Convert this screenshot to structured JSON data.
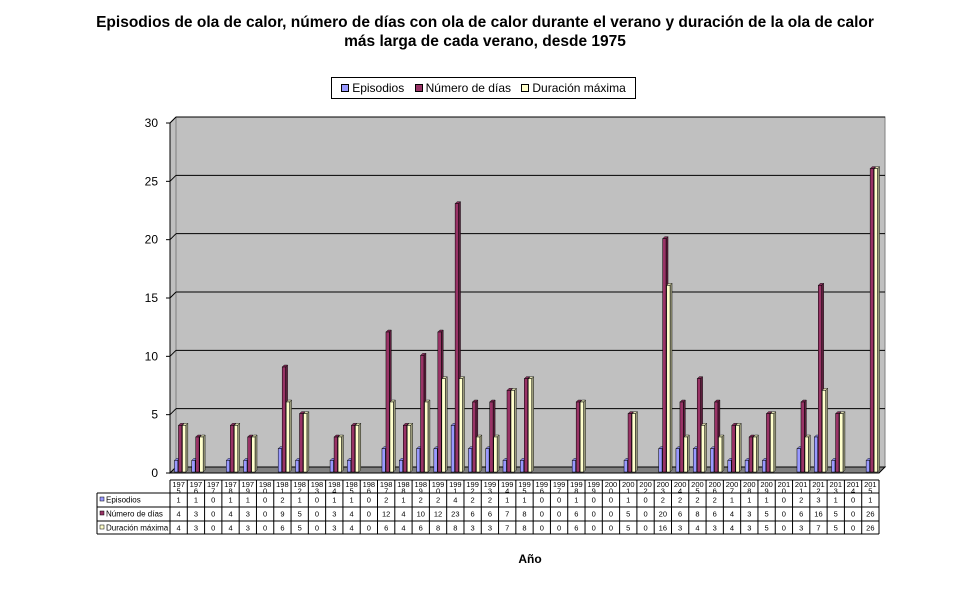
{
  "chart_data": {
    "type": "bar",
    "title": "Episodios de ola de calor, número de días con ola de calor durante el verano y duración de la ola de calor más larga de cada verano, desde 1975",
    "xlabel": "Año",
    "ylabel": "",
    "ylim": [
      0,
      30
    ],
    "yticks": [
      0,
      5,
      10,
      15,
      20,
      25,
      30
    ],
    "grid": true,
    "legend_position": "top-center",
    "categories": [
      [
        "197",
        "5"
      ],
      [
        "197",
        "6"
      ],
      [
        "197",
        "7"
      ],
      [
        "197",
        "8"
      ],
      [
        "197",
        "9"
      ],
      [
        "198",
        "0"
      ],
      [
        "198",
        "1"
      ],
      [
        "198",
        "2"
      ],
      [
        "198",
        "3"
      ],
      [
        "198",
        "4"
      ],
      [
        "198",
        "5"
      ],
      [
        "198",
        "6"
      ],
      [
        "198",
        "7"
      ],
      [
        "198",
        "8"
      ],
      [
        "198",
        "9"
      ],
      [
        "199",
        "0"
      ],
      [
        "199",
        "1"
      ],
      [
        "199",
        "2"
      ],
      [
        "199",
        "3"
      ],
      [
        "199",
        "4"
      ],
      [
        "199",
        "5"
      ],
      [
        "199",
        "6"
      ],
      [
        "199",
        "7"
      ],
      [
        "199",
        "8"
      ],
      [
        "199",
        "9"
      ],
      [
        "200",
        "0"
      ],
      [
        "200",
        "1"
      ],
      [
        "200",
        "2"
      ],
      [
        "200",
        "3"
      ],
      [
        "200",
        "4"
      ],
      [
        "200",
        "5"
      ],
      [
        "200",
        "6"
      ],
      [
        "200",
        "7"
      ],
      [
        "200",
        "8"
      ],
      [
        "200",
        "9"
      ],
      [
        "201",
        "0"
      ],
      [
        "201",
        "1"
      ],
      [
        "201",
        "2"
      ],
      [
        "201",
        "3"
      ],
      [
        "201",
        "4"
      ],
      [
        "201",
        "5"
      ]
    ],
    "series": [
      {
        "name": "Episodios",
        "color": "#9999ff",
        "values": [
          1,
          1,
          0,
          1,
          1,
          0,
          2,
          1,
          0,
          1,
          1,
          0,
          2,
          1,
          2,
          2,
          4,
          2,
          2,
          1,
          1,
          0,
          0,
          1,
          0,
          0,
          1,
          0,
          2,
          2,
          2,
          2,
          1,
          1,
          1,
          0,
          2,
          3,
          1,
          0,
          1
        ]
      },
      {
        "name": "Número de días",
        "color": "#993366",
        "values": [
          4,
          3,
          0,
          4,
          3,
          0,
          9,
          5,
          0,
          3,
          4,
          0,
          12,
          4,
          10,
          12,
          23,
          6,
          6,
          7,
          8,
          0,
          0,
          6,
          0,
          0,
          5,
          0,
          20,
          6,
          8,
          6,
          4,
          3,
          5,
          0,
          6,
          16,
          5,
          0,
          26
        ]
      },
      {
        "name": "Duración máxima",
        "color": "#ffffcc",
        "values": [
          4,
          3,
          0,
          4,
          3,
          0,
          6,
          5,
          0,
          3,
          4,
          0,
          6,
          4,
          6,
          8,
          8,
          3,
          3,
          7,
          8,
          0,
          0,
          6,
          0,
          0,
          5,
          0,
          16,
          3,
          4,
          3,
          4,
          3,
          5,
          0,
          3,
          7,
          5,
          0,
          26
        ]
      }
    ]
  },
  "colors": {
    "plot_background": "#c0c0c0",
    "grid": "#000000"
  }
}
